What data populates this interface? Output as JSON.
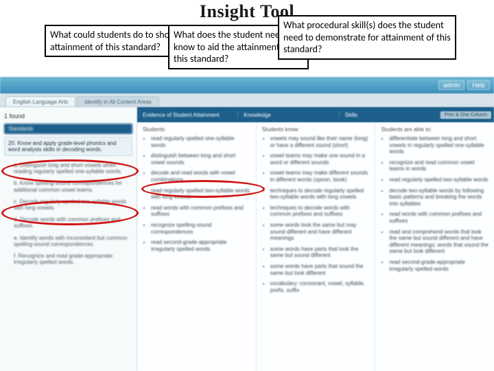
{
  "title": "Insight Tool",
  "callouts": {
    "c1": "What could students do to show attainment of this standard?",
    "c2": "What does the student need to know to aid the attainment of this standard?",
    "c3": "What procedural skill(s) does the student need to demonstrate for attainment of this standard?"
  },
  "topbar": {
    "admin": "admin",
    "help": "Help"
  },
  "tabs": {
    "t1": "English Language Arts",
    "t2": "Identify in All Content Areas"
  },
  "found_text": "1 found",
  "colheaders": {
    "evidence": "Evidence of Student Attainment",
    "knowledge": "Knowledge",
    "skills": "Skills",
    "prev": "Prev & One Column"
  },
  "leads": {
    "students": "Students:",
    "know": "Students know:",
    "able": "Students are able to:"
  },
  "left": {
    "header": "Standards",
    "main": "20. Know and apply grade-level phonics and word analysis skills in decoding words.",
    "subs": [
      "a.  Distinguish long and short vowels when reading regularly spelled one-syllable words.",
      "b.  Know spelling-sound correspondences for additional common vowel teams.",
      "c.  Decode regularly spelled two-syllable words with long vowels.",
      "d.  Decode words with common prefixes and suffixes.",
      "e.  Identify words with inconsistent but common spelling-sound correspondences.",
      "f.  Recognize and read grade-appropriate irregularly spelled words."
    ]
  },
  "evidence_items": [
    "read regularly spelled one-syllable words",
    "distinguish between long and short vowel sounds",
    "decode and read words with vowel combinations",
    "read regularly spelled two-syllable words with long vowels",
    "read words with common prefixes and suffixes",
    "recognize spelling-sound correspondences",
    "read second-grade-appropriate irregularly spelled words"
  ],
  "knowledge_items": [
    "vowels may sound like their name (long) or have a different sound (short)",
    "vowel teams may make one sound in a word or different sounds",
    "vowel teams may make different sounds in different words (spoon, book)",
    "techniques to decode regularly spelled two-syllable words with long vowels",
    "techniques to decode words with common prefixes and suffixes",
    "some words look the same but may sound different and have different meanings",
    "some words have parts that look the same but sound different",
    "some words have parts that sound the same but look different",
    "vocabulary: consonant, vowel, syllable, prefix, suffix"
  ],
  "skills_items": [
    "differentiate between long and short vowels in regularly spelled one-syllable words",
    "recognize and read common vowel teams in words",
    "read regularly spelled two-syllable words",
    "decode two-syllable words by following basic patterns and breaking the words into syllables",
    "read words with common prefixes and suffixes",
    "read and comprehend words that look the same but sound different and have different meanings; words that sound the same but look different",
    "read second-grade-appropriate irregularly spelled words"
  ]
}
